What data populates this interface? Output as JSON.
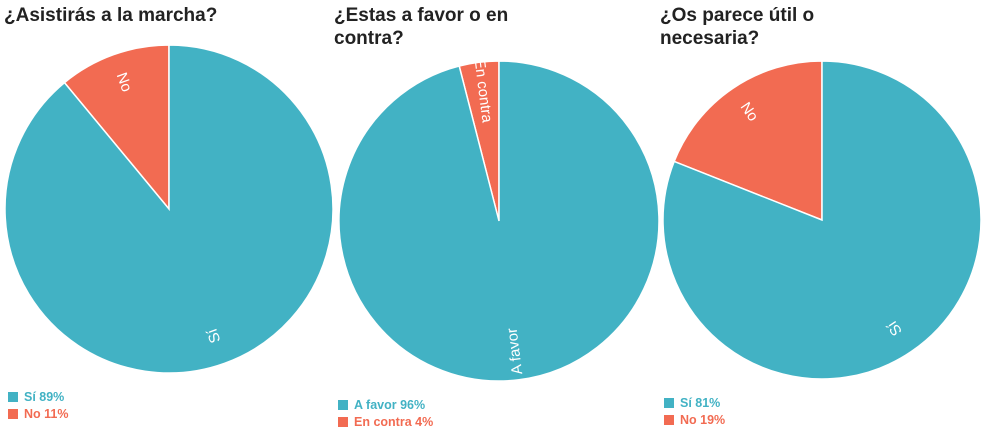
{
  "colors": {
    "si": "#42b2c4",
    "no": "#f26b52"
  },
  "chart_data": [
    {
      "type": "pie",
      "title": "¿Asistirás a la marcha?",
      "slices": [
        {
          "label": "Sí",
          "value": 89,
          "legend": "Sí 89%",
          "color": "#42b2c4"
        },
        {
          "label": "No",
          "value": 11,
          "legend": "No 11%",
          "color": "#f26b52"
        }
      ]
    },
    {
      "type": "pie",
      "title": "¿Estas a favor o en\ncontra?",
      "slices": [
        {
          "label": "A favor",
          "value": 96,
          "legend": "A favor 96%",
          "color": "#42b2c4"
        },
        {
          "label": "En contra",
          "value": 4,
          "legend": "En contra 4%",
          "color": "#f26b52"
        }
      ]
    },
    {
      "type": "pie",
      "title": "¿Os parece útil o\nnecesaria?",
      "slices": [
        {
          "label": "Sí",
          "value": 81,
          "legend": "Sí 81%",
          "color": "#42b2c4"
        },
        {
          "label": "No",
          "value": 19,
          "legend": "No 19%",
          "color": "#f26b52"
        }
      ]
    }
  ]
}
